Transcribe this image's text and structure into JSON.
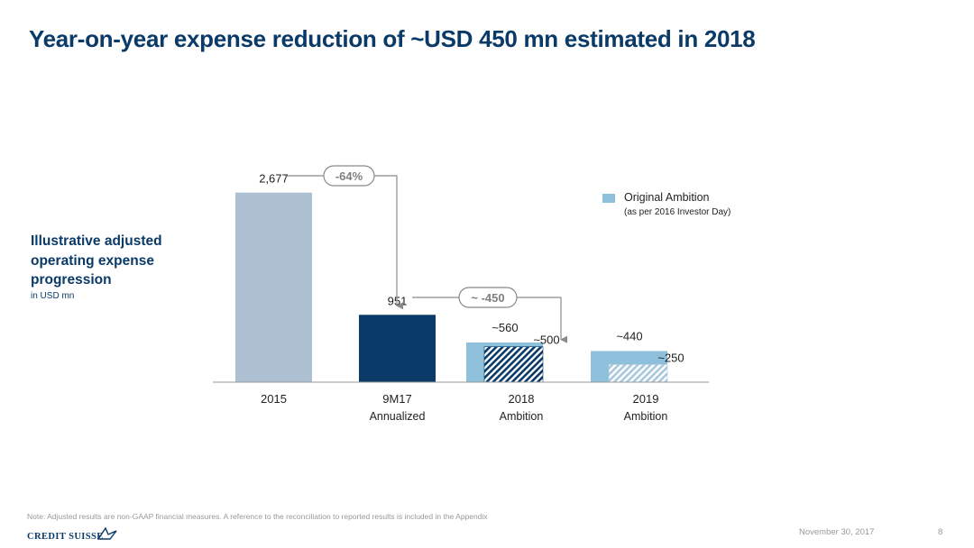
{
  "title": "Year-on-year expense reduction of ~USD 450 mn estimated in 2018",
  "side": {
    "heading": "Illustrative adjusted\noperating expense\nprogression",
    "unit": "in USD mn"
  },
  "legend": {
    "label": "Original Ambition",
    "sub": "(as per 2016 Investor Day)",
    "color": "#8fc0db"
  },
  "chart_data": {
    "type": "bar",
    "categories": [
      {
        "line1": "2015",
        "line2": ""
      },
      {
        "line1": "9M17",
        "line2": "Annualized"
      },
      {
        "line1": "2018",
        "line2": "Ambition"
      },
      {
        "line1": "2019",
        "line2": "Ambition"
      }
    ],
    "series": [
      {
        "name": "Original Ambition",
        "values": [
          null,
          null,
          560,
          440
        ],
        "labels": [
          "",
          "",
          "~560",
          "~440"
        ]
      },
      {
        "values": [
          2677,
          951,
          500,
          250
        ],
        "labels": [
          "2,677",
          "951",
          "~500",
          "~250"
        ]
      }
    ],
    "ylim": [
      0,
      2800
    ],
    "colors": {
      "2015": "#adc0d1",
      "9M17": "#0a3a68",
      "ambition": "#8fc0db",
      "hatch": "#0a3a68",
      "hatch_light": "#a9c7dc"
    },
    "annotations": [
      {
        "text": "-64%",
        "from": 0,
        "to": 1
      },
      {
        "text": "~ -450",
        "from": 1,
        "to": 2
      }
    ]
  },
  "footer": {
    "note": "Note: Adjusted results are non-GAAP financial measures. A reference to the reconciliation to reported results is included in the Appendix",
    "logo": "CREDIT SUISSE",
    "date": "November 30, 2017",
    "page": "8"
  }
}
